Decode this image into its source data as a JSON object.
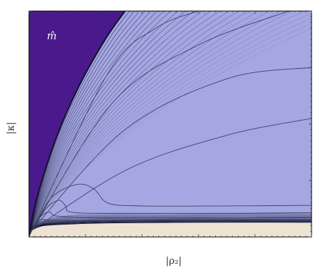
{
  "chart_data": {
    "type": "contour",
    "title": "",
    "xlabel": "|ρ₂|",
    "ylabel": "|κ|",
    "annotation": "m̂",
    "xlim": [
      0,
      10
    ],
    "ylim": [
      0,
      4
    ],
    "tick_labels_shown": false,
    "grid": false,
    "legend": "none",
    "colors": {
      "left_region": "#4a1a8c",
      "main_region": "#a4a7e2",
      "bottom_band": "#ede3d3",
      "contour_line": "#3c3f5e",
      "dense_edge": "#141430",
      "frame": "#000000"
    },
    "regions": [
      {
        "name": "upper-left",
        "color": "#4a1a8c"
      },
      {
        "name": "main",
        "color": "#a4a7e2"
      },
      {
        "name": "bottom",
        "color": "#ede3d3"
      }
    ],
    "left_boundary": {
      "x": [
        0,
        0.12,
        0.4,
        1.0,
        1.8,
        2.7,
        3.4
      ],
      "y": [
        0,
        0.35,
        0.9,
        1.8,
        2.7,
        3.5,
        4.0
      ]
    },
    "bottom_boundary": {
      "x": [
        0.1,
        0.5,
        1.5,
        3.0,
        6.0,
        10.0
      ],
      "y": [
        0.12,
        0.2,
        0.23,
        0.25,
        0.26,
        0.26
      ]
    },
    "fan_contours": [
      {
        "x": [
          0.1,
          2.8,
          4.5,
          6.0
        ],
        "y": [
          0.12,
          2.9,
          3.7,
          4.0
        ]
      },
      {
        "x": [
          0.1,
          3.0,
          6.0,
          9.2
        ],
        "y": [
          0.12,
          2.4,
          3.4,
          4.0
        ]
      },
      {
        "x": [
          0.1,
          3.4,
          7.0,
          10.0
        ],
        "y": [
          0.12,
          1.9,
          2.8,
          3.0
        ]
      },
      {
        "x": [
          0.1,
          3.5,
          7.0,
          10.0
        ],
        "y": [
          0.12,
          1.2,
          1.8,
          2.1
        ]
      },
      {
        "x": [
          0.15,
          0.8,
          1.7,
          2.3,
          2.8,
          4.0,
          7.0,
          10.0
        ],
        "y": [
          0.15,
          0.7,
          0.93,
          0.85,
          0.6,
          0.55,
          0.55,
          0.56
        ]
      },
      {
        "x": [
          0.15,
          0.6,
          1.05,
          1.3,
          1.5,
          3.0,
          7.0,
          10.0
        ],
        "y": [
          0.15,
          0.5,
          0.65,
          0.55,
          0.44,
          0.42,
          0.42,
          0.43
        ]
      },
      {
        "x": [
          0.15,
          0.45,
          0.75,
          1.0,
          2.5,
          6.0,
          10.0
        ],
        "y": [
          0.15,
          0.38,
          0.44,
          0.37,
          0.34,
          0.34,
          0.35
        ]
      },
      {
        "x": [
          0.15,
          0.35,
          0.55,
          0.8,
          2.0,
          6.0,
          10.0
        ],
        "y": [
          0.14,
          0.29,
          0.31,
          0.29,
          0.29,
          0.3,
          0.3
        ]
      }
    ]
  }
}
